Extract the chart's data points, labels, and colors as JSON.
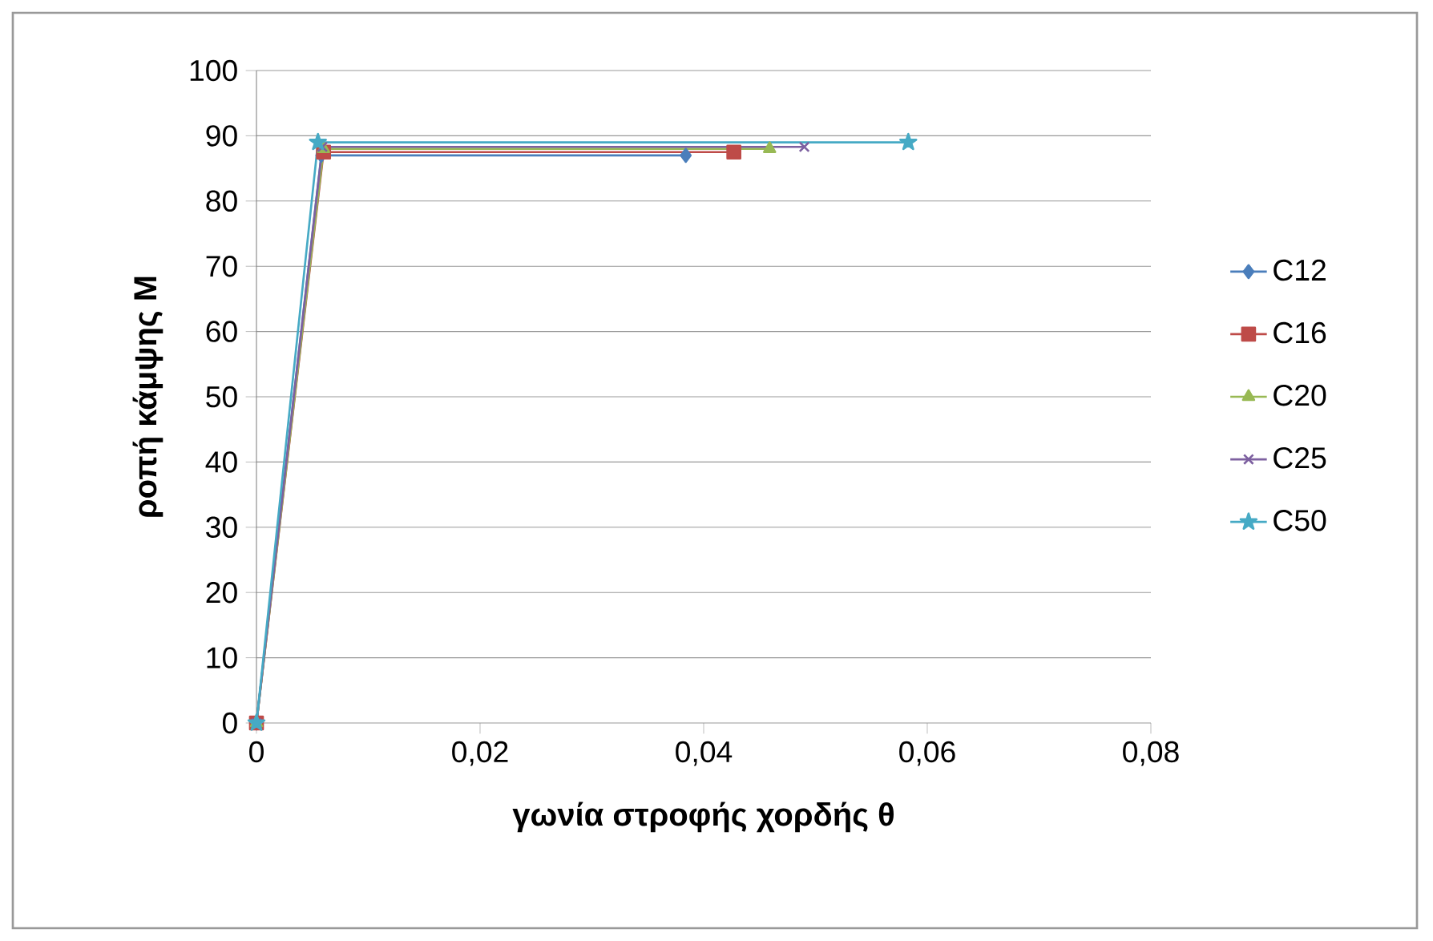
{
  "chart_data": {
    "type": "line",
    "xlabel": "γωνία στροφής χορδής θ",
    "ylabel": "ροπή κάμψης M",
    "xlim": [
      0,
      0.08
    ],
    "ylim": [
      0,
      100
    ],
    "xticks": [
      0,
      {
        "value": 0.02,
        "label": "0,02"
      },
      {
        "value": 0.04,
        "label": "0,04"
      },
      {
        "value": 0.06,
        "label": "0,06"
      },
      {
        "value": 0.08,
        "label": "0,08"
      }
    ],
    "yticks": [
      0,
      10,
      20,
      30,
      40,
      50,
      60,
      70,
      80,
      90,
      100
    ],
    "grid": "y",
    "legend": "right",
    "line_style": "solid",
    "series": [
      {
        "name": "C12",
        "color": "#4a7ebb",
        "marker": "diamond",
        "x": [
          0,
          0.0058,
          0.0384
        ],
        "values": [
          0,
          87,
          87
        ]
      },
      {
        "name": "C16",
        "color": "#be4b48",
        "marker": "square",
        "x": [
          0,
          0.006,
          0.0427
        ],
        "values": [
          0,
          87.5,
          87.5
        ]
      },
      {
        "name": "C20",
        "color": "#98b954",
        "marker": "triangle",
        "x": [
          0,
          0.006,
          0.0459
        ],
        "values": [
          0,
          88,
          88
        ]
      },
      {
        "name": "C25",
        "color": "#7d60a0",
        "marker": "cross",
        "x": [
          0,
          0.0059,
          0.049
        ],
        "values": [
          0,
          88.3,
          88.3
        ]
      },
      {
        "name": "C50",
        "color": "#46aac5",
        "marker": "star",
        "x": [
          0,
          0.0055,
          0.0583
        ],
        "values": [
          0,
          89,
          89
        ]
      }
    ]
  }
}
